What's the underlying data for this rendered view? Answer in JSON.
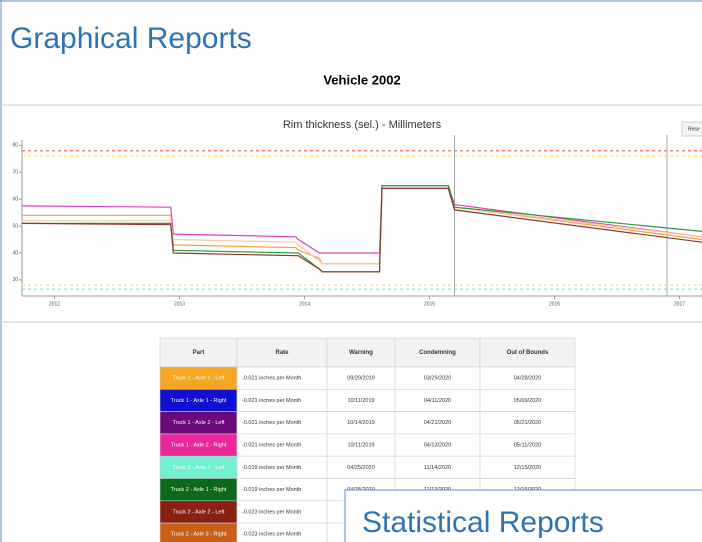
{
  "header": {
    "title": "Graphical Reports",
    "subtitle": "Vehicle 2002"
  },
  "reset_button": "Rese",
  "chart_data": {
    "type": "line",
    "title": "Rim thickness (sel.) - Millimeters",
    "x": [
      2011.74,
      2012.93,
      2012.95,
      2013.93,
      2013.95,
      2014.12,
      2014.14,
      2014.6,
      2014.62,
      2015.15,
      2015.2,
      2017.18
    ],
    "xlim": [
      2011.74,
      2017.18
    ],
    "xticks": [
      2012,
      2013,
      2014,
      2015,
      2016,
      2017
    ],
    "ylim": [
      24,
      82
    ],
    "yticks": [
      30,
      40,
      50,
      60,
      70,
      80
    ],
    "reference_lines": [
      {
        "value": 78,
        "color": "#f08080"
      },
      {
        "value": 76,
        "color": "#f0e68c"
      },
      {
        "value": 28,
        "color": "#f0e68c"
      },
      {
        "value": 26.5,
        "color": "#9fe8e0"
      }
    ],
    "vertical_lines": [
      2015.2,
      2016.9
    ],
    "series": [
      {
        "color": "#e040c0",
        "values": [
          57.5,
          57,
          47,
          46,
          45,
          40,
          40,
          40,
          65,
          65,
          58,
          46
        ]
      },
      {
        "color": "#f0a040",
        "values": [
          54,
          54,
          43,
          42,
          41,
          38,
          36,
          36,
          64,
          64,
          57,
          45
        ]
      },
      {
        "color": "#f8c8a0",
        "values": [
          52,
          52,
          45,
          44,
          43,
          37,
          36,
          36,
          64,
          64,
          57,
          46
        ]
      },
      {
        "color": "#2e9a40",
        "values": [
          51,
          51,
          41,
          40,
          40,
          34,
          33,
          33,
          65,
          65,
          57,
          48
        ]
      },
      {
        "color": "#8b3a2a",
        "values": [
          51,
          50.5,
          40,
          39,
          39,
          34,
          33,
          33,
          64,
          64,
          56,
          44
        ]
      }
    ]
  },
  "table": {
    "columns": [
      "Part",
      "Rate",
      "Warning",
      "Condemning",
      "Out of Bounds"
    ],
    "rows": [
      {
        "color": "#f5a623",
        "cells": [
          "Truck 1 - Axle 1 - Left",
          "-0.021 inches per Month",
          "09/29/2019",
          "03/29/2020",
          "04/28/2020"
        ]
      },
      {
        "color": "#1010d0",
        "cells": [
          "Truck 1 - Axle 1 - Right",
          "-0.021 inches per Month",
          "10/11/2019",
          "04/11/2020",
          "05/09/2020"
        ]
      },
      {
        "color": "#6a0a7a",
        "cells": [
          "Truck 1 - Axle 2 - Left",
          "-0.021 inches per Month",
          "10/14/2019",
          "04/21/2020",
          "05/21/2020"
        ]
      },
      {
        "color": "#e8289a",
        "cells": [
          "Truck 1 - Axle 2 - Right",
          "-0.021 inches per Month",
          "10/11/2019",
          "04/13/2020",
          "05/11/2020"
        ]
      },
      {
        "color": "#70f0d0",
        "cells": [
          "Truck 2 - Axle 1 - Left",
          "-0.019 inches per Month",
          "04/25/2020",
          "11/14/2020",
          "12/15/2020"
        ]
      },
      {
        "color": "#0a6a1a",
        "cells": [
          "Truck 2 - Axle 1 - Right",
          "-0.019 inches per Month",
          "04/25/2020",
          "11/13/2020",
          "12/15/2020"
        ]
      },
      {
        "color": "#8a2010",
        "cells": [
          "Truck 2 - Axle 2 - Left",
          "-0.023 inches per Month"
        ]
      },
      {
        "color": "#c8601a",
        "cells": [
          "Truck 2 - Axle 2 - Right",
          "-0.023 inches per Month"
        ]
      }
    ]
  },
  "overlay": {
    "title": "Statistical Reports"
  }
}
